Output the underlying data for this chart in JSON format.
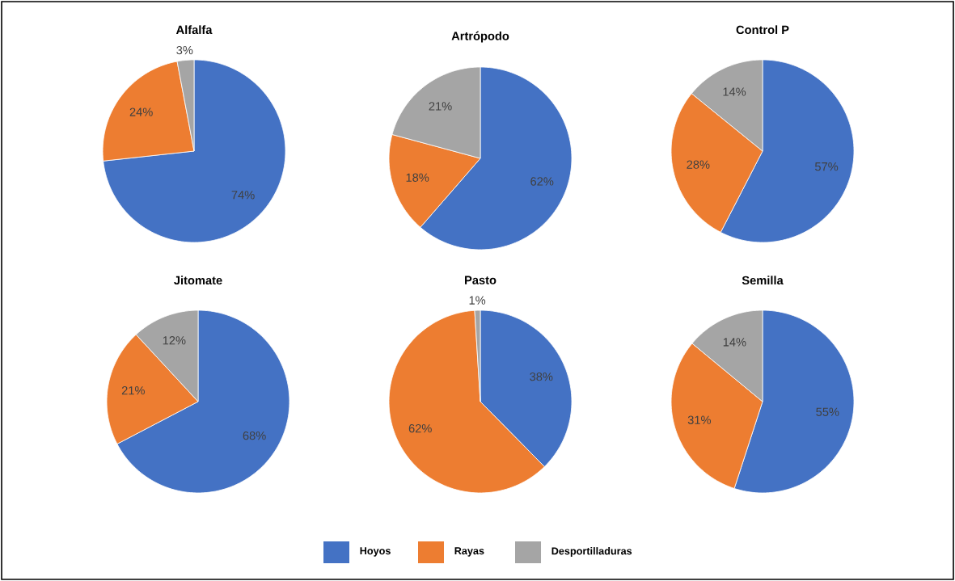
{
  "chart_data": [
    {
      "type": "pie",
      "title": "Alfalfa",
      "categories": [
        "Hoyos",
        "Rayas",
        "Desportilladuras"
      ],
      "values": [
        74,
        24,
        3
      ],
      "colors": [
        "#4472c4",
        "#ed7d31",
        "#a5a5a5"
      ],
      "value_labels": [
        "74%",
        "24%",
        "3%"
      ],
      "legend": "bottom"
    },
    {
      "type": "pie",
      "title": "Artrópodo",
      "categories": [
        null,
        null,
        null
      ],
      "values": [
        62,
        18,
        21
      ],
      "colors": [
        "#4472c4",
        "#ed7d31",
        "#a5a5a5"
      ],
      "value_labels": [
        "62%",
        "18%",
        "21%"
      ]
    },
    {
      "type": "pie",
      "title": "Control P",
      "categories": [
        null,
        null,
        null
      ],
      "values": [
        57,
        28,
        14
      ],
      "colors": [
        "#4472c4",
        "#ed7d31",
        "#a5a5a5"
      ],
      "value_labels": [
        "57%",
        "28%",
        "14%"
      ]
    },
    {
      "type": "pie",
      "title": "Jitomate",
      "categories": [
        null,
        null,
        null
      ],
      "values": [
        68,
        21,
        12
      ],
      "colors": [
        "#4472c4",
        "#ed7d31",
        "#a5a5a5"
      ],
      "value_labels": [
        "68%",
        "21%",
        "12%"
      ]
    },
    {
      "type": "pie",
      "title": "Pasto",
      "categories": [
        null,
        null,
        null
      ],
      "values": [
        38,
        62,
        1
      ],
      "colors": [
        "#4472c4",
        "#ed7d31",
        "#a5a5a5"
      ],
      "value_labels": [
        "38%",
        "62%",
        "1%"
      ]
    },
    {
      "type": "pie",
      "title": "Semilla",
      "categories": [
        null,
        null,
        null
      ],
      "values": [
        55,
        31,
        14
      ],
      "colors": [
        "#4472c4",
        "#ed7d31",
        "#a5a5a5"
      ],
      "value_labels": [
        "55%",
        "31%",
        "14%"
      ]
    }
  ]
}
